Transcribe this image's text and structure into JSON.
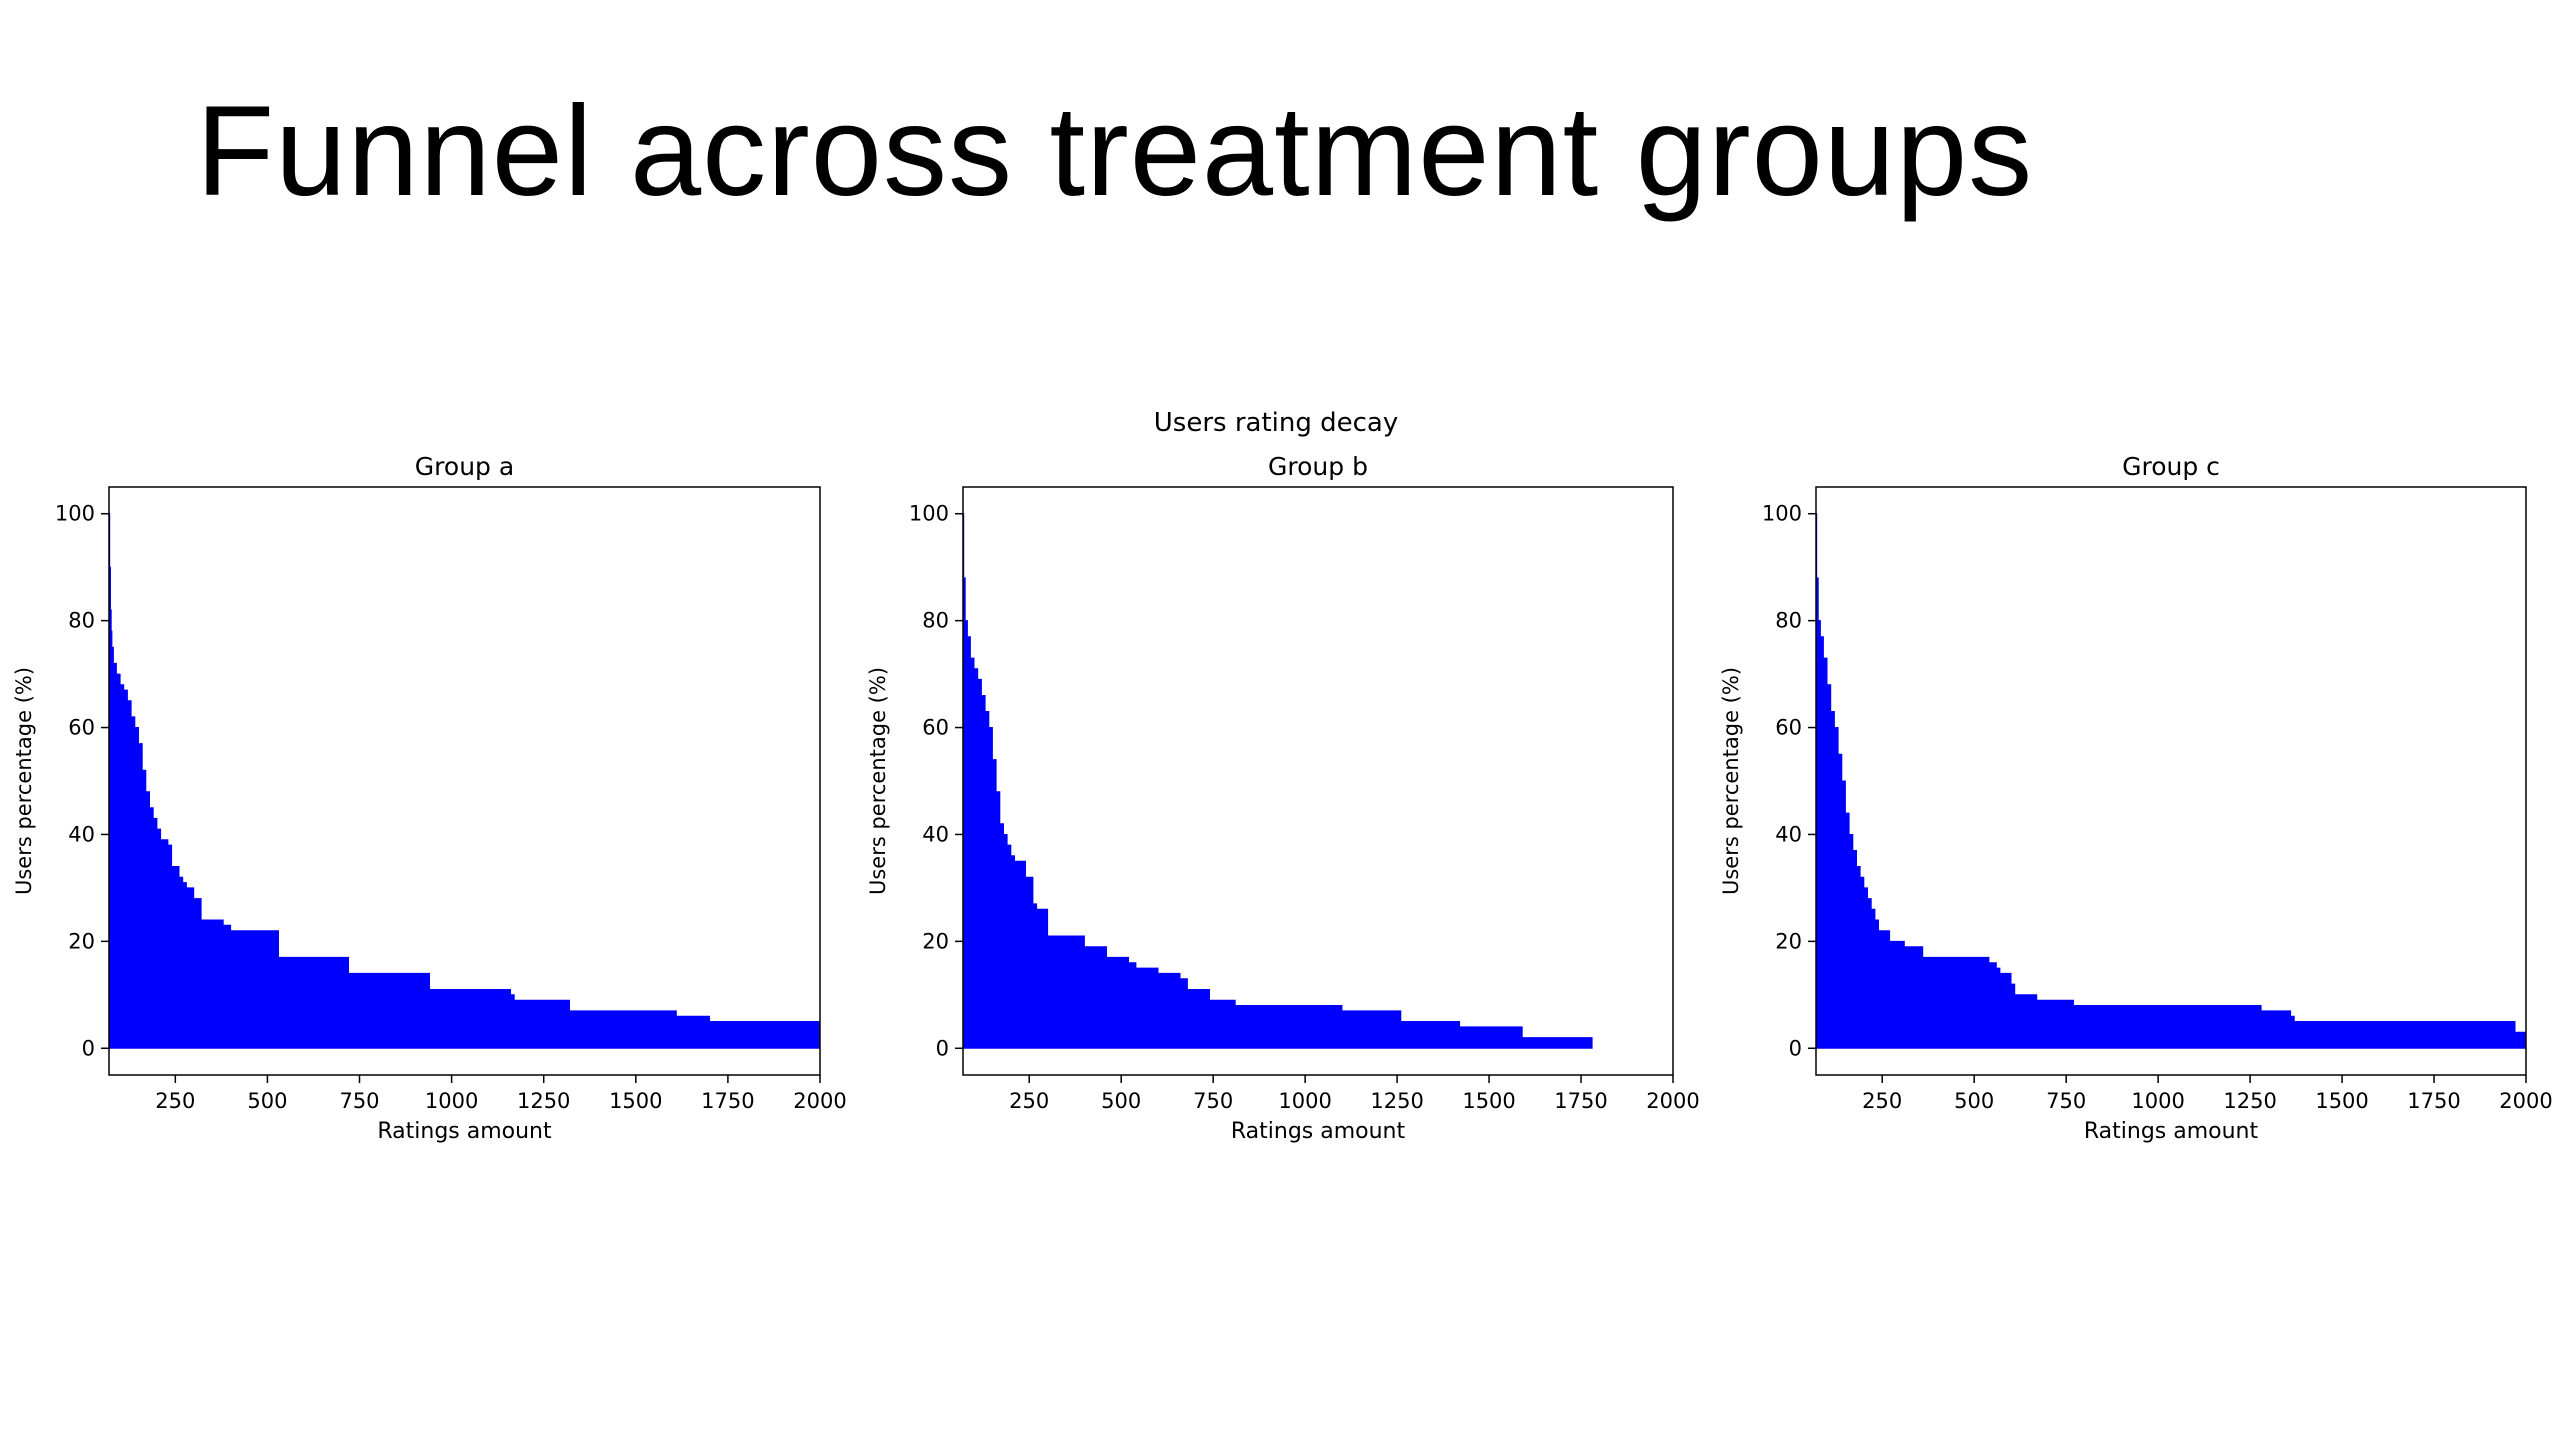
{
  "slide": {
    "title": "Funnel across treatment groups"
  },
  "figure": {
    "suptitle": "Users rating decay"
  },
  "colors": {
    "fill": "#0000ff",
    "axis": "#000000",
    "text": "#000000"
  },
  "chart_data": [
    {
      "type": "area",
      "title": "Group a",
      "xlabel": "Ratings amount",
      "ylabel": "Users percentage (%)",
      "xlim": [
        70,
        2000
      ],
      "ylim": [
        -5,
        105
      ],
      "xticks": [
        250,
        500,
        750,
        1000,
        1250,
        1500,
        1750,
        2000
      ],
      "yticks": [
        0,
        20,
        40,
        60,
        80,
        100
      ],
      "series": [
        {
          "name": "Group a",
          "x": [
            70,
            72,
            74,
            76,
            78,
            82,
            90,
            100,
            110,
            120,
            130,
            140,
            150,
            160,
            170,
            180,
            190,
            200,
            210,
            220,
            230,
            240,
            260,
            270,
            280,
            300,
            320,
            330,
            340,
            380,
            400,
            430,
            460,
            510,
            530,
            700,
            720,
            920,
            940,
            1050,
            1060,
            1160,
            1170,
            1310,
            1320,
            1600,
            1610,
            1690,
            1700,
            2000
          ],
          "y": [
            100,
            90,
            82,
            78,
            75,
            72,
            70,
            68,
            67,
            65,
            62,
            60,
            57,
            52,
            48,
            45,
            43,
            41,
            39,
            39,
            38,
            34,
            32,
            31,
            30,
            28,
            24,
            24,
            24,
            23,
            22,
            22,
            22,
            22,
            17,
            17,
            14,
            14,
            11,
            11,
            11,
            10,
            9,
            9,
            7,
            7,
            6,
            6,
            5,
            5
          ]
        }
      ]
    },
    {
      "type": "area",
      "title": "Group b",
      "xlabel": "Ratings amount",
      "ylabel": "Users percentage (%)",
      "xlim": [
        70,
        2000
      ],
      "ylim": [
        -5,
        105
      ],
      "xticks": [
        250,
        500,
        750,
        1000,
        1250,
        1500,
        1750,
        2000
      ],
      "yticks": [
        0,
        20,
        40,
        60,
        80,
        100
      ],
      "series": [
        {
          "name": "Group b",
          "x": [
            70,
            72,
            76,
            82,
            90,
            100,
            110,
            120,
            130,
            140,
            150,
            160,
            170,
            180,
            190,
            200,
            210,
            220,
            240,
            260,
            270,
            300,
            310,
            340,
            400,
            420,
            460,
            480,
            520,
            540,
            600,
            620,
            660,
            680,
            730,
            740,
            800,
            810,
            1090,
            1100,
            1250,
            1260,
            1410,
            1420,
            1580,
            1590,
            1780
          ],
          "y": [
            100,
            88,
            80,
            77,
            73,
            71,
            69,
            66,
            63,
            60,
            54,
            48,
            42,
            40,
            38,
            36,
            35,
            35,
            32,
            27,
            26,
            21,
            21,
            21,
            19,
            19,
            17,
            17,
            16,
            15,
            14,
            14,
            13,
            11,
            11,
            9,
            9,
            8,
            8,
            7,
            7,
            5,
            5,
            4,
            4,
            2,
            2
          ]
        }
      ]
    },
    {
      "type": "area",
      "title": "Group c",
      "xlabel": "Ratings amount",
      "ylabel": "Users percentage (%)",
      "xlim": [
        70,
        2000
      ],
      "ylim": [
        -5,
        105
      ],
      "xticks": [
        250,
        500,
        750,
        1000,
        1250,
        1500,
        1750,
        2000
      ],
      "yticks": [
        0,
        20,
        40,
        60,
        80,
        100
      ],
      "series": [
        {
          "name": "Group c",
          "x": [
            70,
            72,
            76,
            82,
            90,
            100,
            110,
            120,
            130,
            140,
            150,
            160,
            170,
            180,
            190,
            200,
            210,
            220,
            230,
            240,
            260,
            270,
            300,
            310,
            350,
            360,
            400,
            420,
            520,
            540,
            560,
            570,
            600,
            610,
            660,
            670,
            760,
            770,
            1260,
            1280,
            1360,
            1370,
            1960,
            1970,
            2000
          ],
          "y": [
            100,
            88,
            80,
            77,
            73,
            68,
            63,
            60,
            55,
            50,
            44,
            40,
            37,
            34,
            32,
            30,
            28,
            26,
            24,
            22,
            22,
            20,
            20,
            19,
            19,
            17,
            17,
            17,
            17,
            16,
            15,
            14,
            12,
            10,
            10,
            9,
            9,
            8,
            8,
            7,
            6,
            5,
            5,
            3,
            3
          ]
        }
      ]
    }
  ]
}
